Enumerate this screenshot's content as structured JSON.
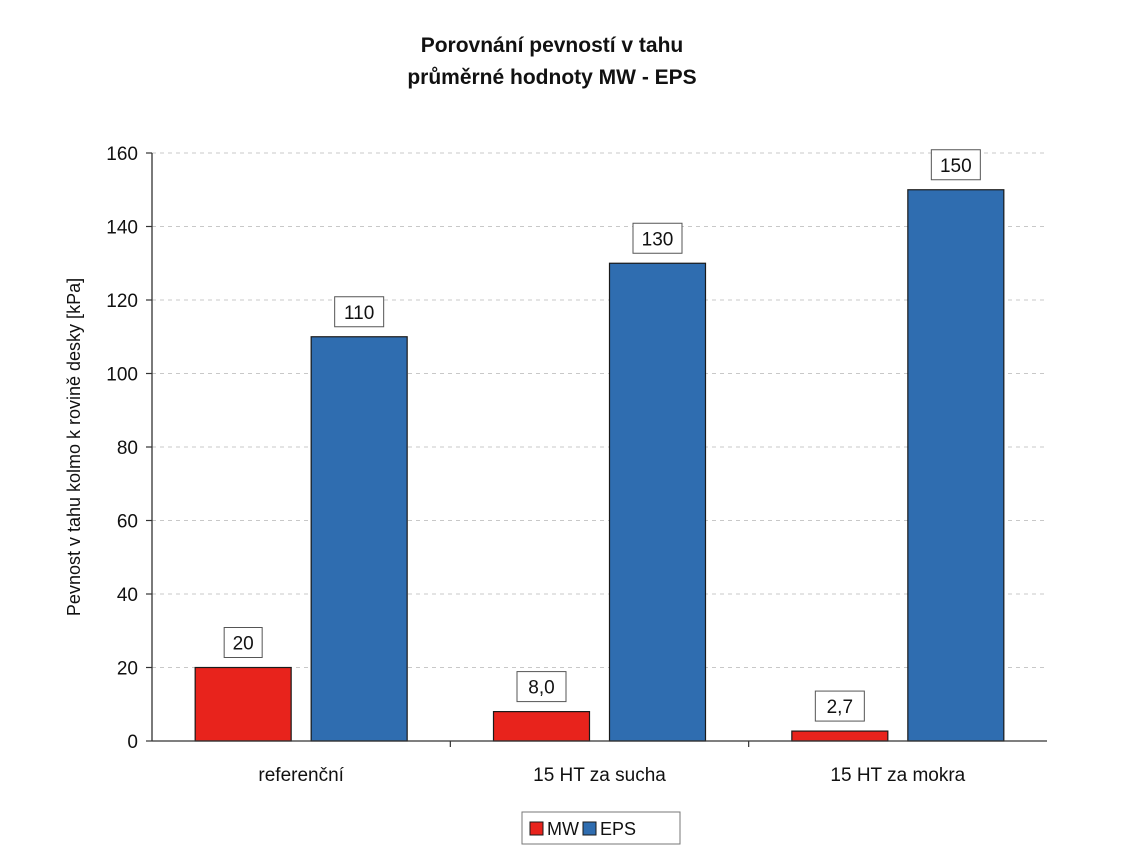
{
  "chart_data": {
    "type": "bar",
    "title": [
      "Porovnání pevností v tahu",
      "průměrné hodnoty MW - EPS"
    ],
    "ylabel": "Pevnost v tahu kolmo k rovině desky [kPa]",
    "xlabel": "",
    "ylim": [
      0,
      160
    ],
    "yticks": [
      0,
      20,
      40,
      60,
      80,
      100,
      120,
      140,
      160
    ],
    "categories": [
      "referenční",
      "15 HT za sucha",
      "15 HT za mokra"
    ],
    "series": [
      {
        "name": "MW",
        "values": [
          20,
          8.0,
          2.7
        ],
        "labels": [
          "20",
          "8,0",
          "2,7"
        ],
        "color": "#e8231c"
      },
      {
        "name": "EPS",
        "values": [
          110,
          130,
          150
        ],
        "labels": [
          "110",
          "130",
          "150"
        ],
        "color": "#2f6db0"
      }
    ],
    "grid": true,
    "legend": "bottom"
  }
}
